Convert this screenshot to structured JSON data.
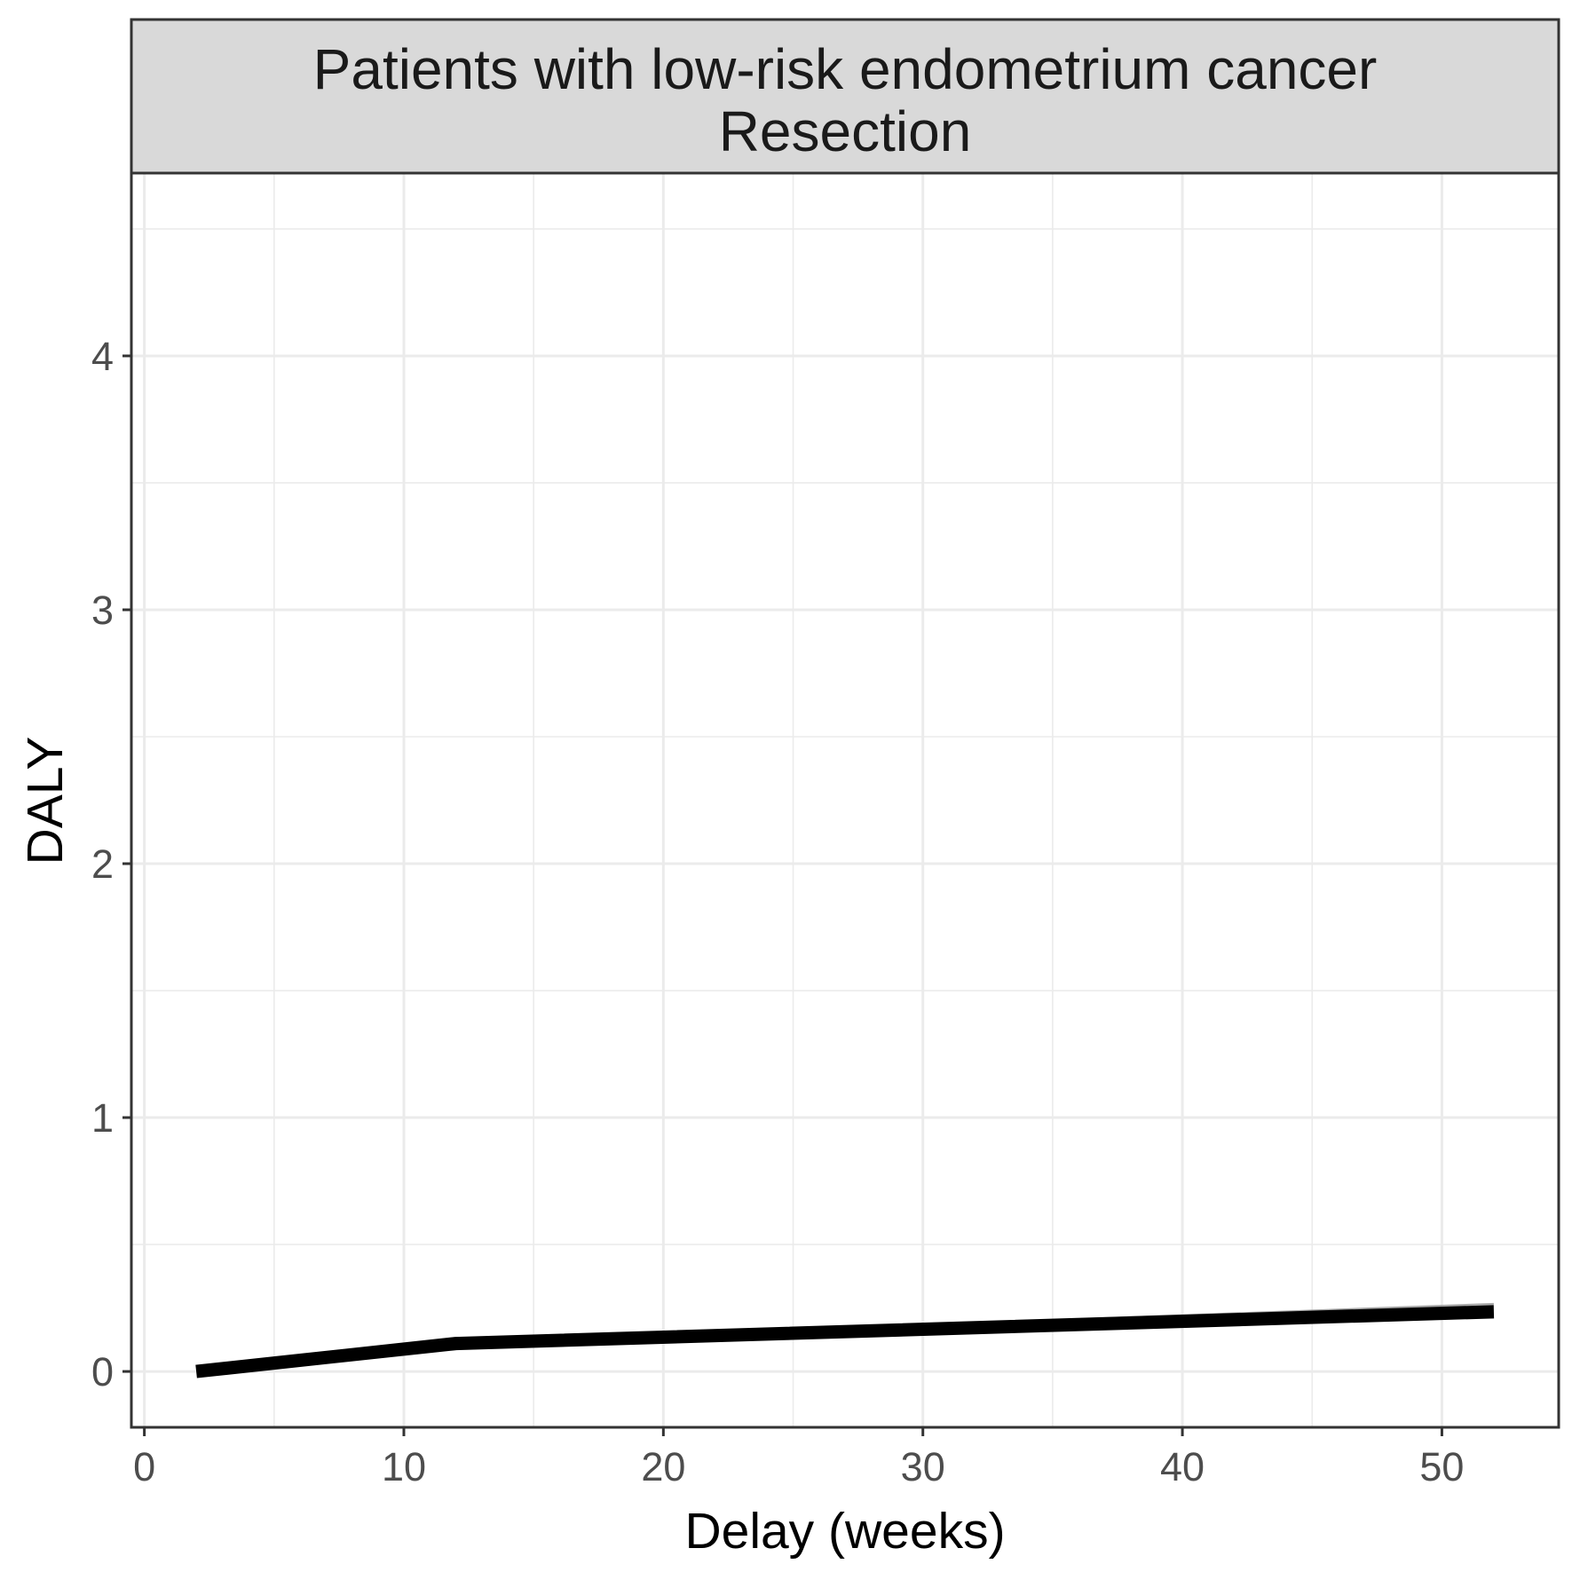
{
  "chart_data": {
    "type": "line",
    "title": "Patients with low-risk endometrium cancer",
    "subtitle": "Resection",
    "xlabel": "Delay (weeks)",
    "ylabel": "DALY",
    "xlim": [
      -0.5,
      54.5
    ],
    "ylim": [
      -0.22,
      4.72
    ],
    "x_ticks": [
      0,
      10,
      20,
      30,
      40,
      50
    ],
    "y_ticks": [
      0,
      1,
      2,
      3,
      4
    ],
    "grid": true,
    "legend": "none",
    "series": [
      {
        "x": [
          2,
          12,
          52
        ],
        "y": [
          0.0,
          0.11,
          0.235
        ],
        "ribbon_lower": [
          0.0,
          0.105,
          0.21
        ],
        "ribbon_upper": [
          0.0,
          0.12,
          0.27
        ]
      }
    ],
    "colors": {
      "line": "#000000",
      "ribbon": "#999999",
      "strip": "#d9d9d9",
      "grid": "#ebebeb",
      "panel_border": "#333333"
    }
  }
}
